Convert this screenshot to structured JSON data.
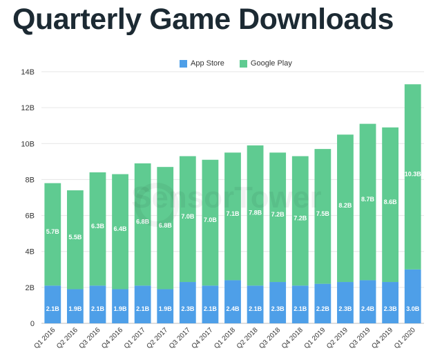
{
  "chart_data": {
    "type": "bar",
    "stacked": true,
    "title": "Quarterly Game Downloads",
    "categories": [
      "Q1 2016",
      "Q2 2016",
      "Q3 2016",
      "Q4 2016",
      "Q1 2017",
      "Q2 2017",
      "Q3 2017",
      "Q4 2017",
      "Q1 2018",
      "Q2 2018",
      "Q3 2018",
      "Q4 2018",
      "Q1 2019",
      "Q2 2019",
      "Q3 2019",
      "Q4 2019",
      "Q1 2020"
    ],
    "series": [
      {
        "name": "App Store",
        "color": "#4e9fe8",
        "values": [
          2.1,
          1.9,
          2.1,
          1.9,
          2.1,
          1.9,
          2.3,
          2.1,
          2.4,
          2.1,
          2.3,
          2.1,
          2.2,
          2.3,
          2.4,
          2.3,
          3.0
        ],
        "labels": [
          "2.1B",
          "1.9B",
          "2.1B",
          "1.9B",
          "2.1B",
          "1.9B",
          "2.3B",
          "2.1B",
          "2.4B",
          "2.1B",
          "2.3B",
          "2.1B",
          "2.2B",
          "2.3B",
          "2.4B",
          "2.3B",
          "3.0B"
        ]
      },
      {
        "name": "Google Play",
        "color": "#5fcb91",
        "values": [
          5.7,
          5.5,
          6.3,
          6.4,
          6.8,
          6.8,
          7.0,
          7.0,
          7.1,
          7.8,
          7.2,
          7.2,
          7.5,
          8.2,
          8.7,
          8.6,
          10.3
        ],
        "labels": [
          "5.7B",
          "5.5B",
          "6.3B",
          "6.4B",
          "6.8B",
          "6.8B",
          "7.0B",
          "7.0B",
          "7.1B",
          "7.8B",
          "7.2B",
          "7.2B",
          "7.5B",
          "8.2B",
          "8.7B",
          "8.6B",
          "10.3B"
        ]
      }
    ],
    "ylim": [
      0,
      14
    ],
    "yticks": [
      0,
      2,
      4,
      6,
      8,
      10,
      12,
      14
    ],
    "ytick_labels": [
      "0",
      "2B",
      "4B",
      "6B",
      "8B",
      "10B",
      "12B",
      "14B"
    ],
    "xlabel": "",
    "ylabel": "",
    "grid": true,
    "legend": "top-center"
  },
  "watermark": "SensorTower"
}
